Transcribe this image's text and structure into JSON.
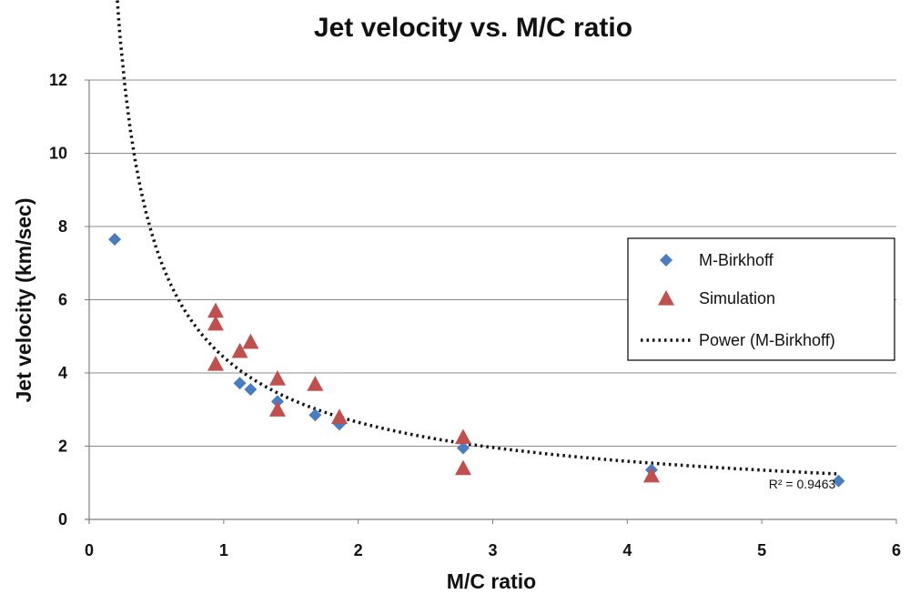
{
  "chart_data": {
    "type": "scatter",
    "title": "Jet velocity vs. M/C ratio",
    "xlabel": "M/C ratio",
    "ylabel": "Jet velocity (km/sec)",
    "xlim": [
      0,
      6
    ],
    "ylim": [
      0,
      12
    ],
    "xticks": [
      0,
      1,
      2,
      3,
      4,
      5,
      6
    ],
    "yticks": [
      0,
      2,
      4,
      6,
      8,
      10,
      12
    ],
    "grid": "horizontal",
    "legend_position": "right",
    "series": [
      {
        "name": "M-Birkhoff",
        "marker": "diamond",
        "color": "#4a7cc2",
        "points": [
          [
            0.19,
            7.65
          ],
          [
            1.12,
            3.72
          ],
          [
            1.2,
            3.55
          ],
          [
            1.4,
            3.22
          ],
          [
            1.68,
            2.85
          ],
          [
            1.86,
            2.6
          ],
          [
            2.78,
            1.95
          ],
          [
            4.18,
            1.35
          ],
          [
            5.57,
            1.05
          ]
        ]
      },
      {
        "name": "Simulation",
        "marker": "triangle",
        "color": "#c0504d",
        "points": [
          [
            0.94,
            5.7
          ],
          [
            0.94,
            5.35
          ],
          [
            0.94,
            4.25
          ],
          [
            1.12,
            4.6
          ],
          [
            1.2,
            4.85
          ],
          [
            1.4,
            3.85
          ],
          [
            1.4,
            3.0
          ],
          [
            1.68,
            3.7
          ],
          [
            1.86,
            2.8
          ],
          [
            2.78,
            2.25
          ],
          [
            2.78,
            1.4
          ],
          [
            4.18,
            1.2
          ]
        ]
      }
    ],
    "trendline": {
      "name": "Power (M-Birkhoff)",
      "type": "power",
      "coefficient": 4.43,
      "exponent": -0.74,
      "x_range": [
        0.19,
        5.57
      ],
      "style": "dotted",
      "color": "#111111",
      "r_squared_label": "R² = 0.9463",
      "r_squared_anchor": [
        5.3,
        0.85
      ]
    }
  }
}
